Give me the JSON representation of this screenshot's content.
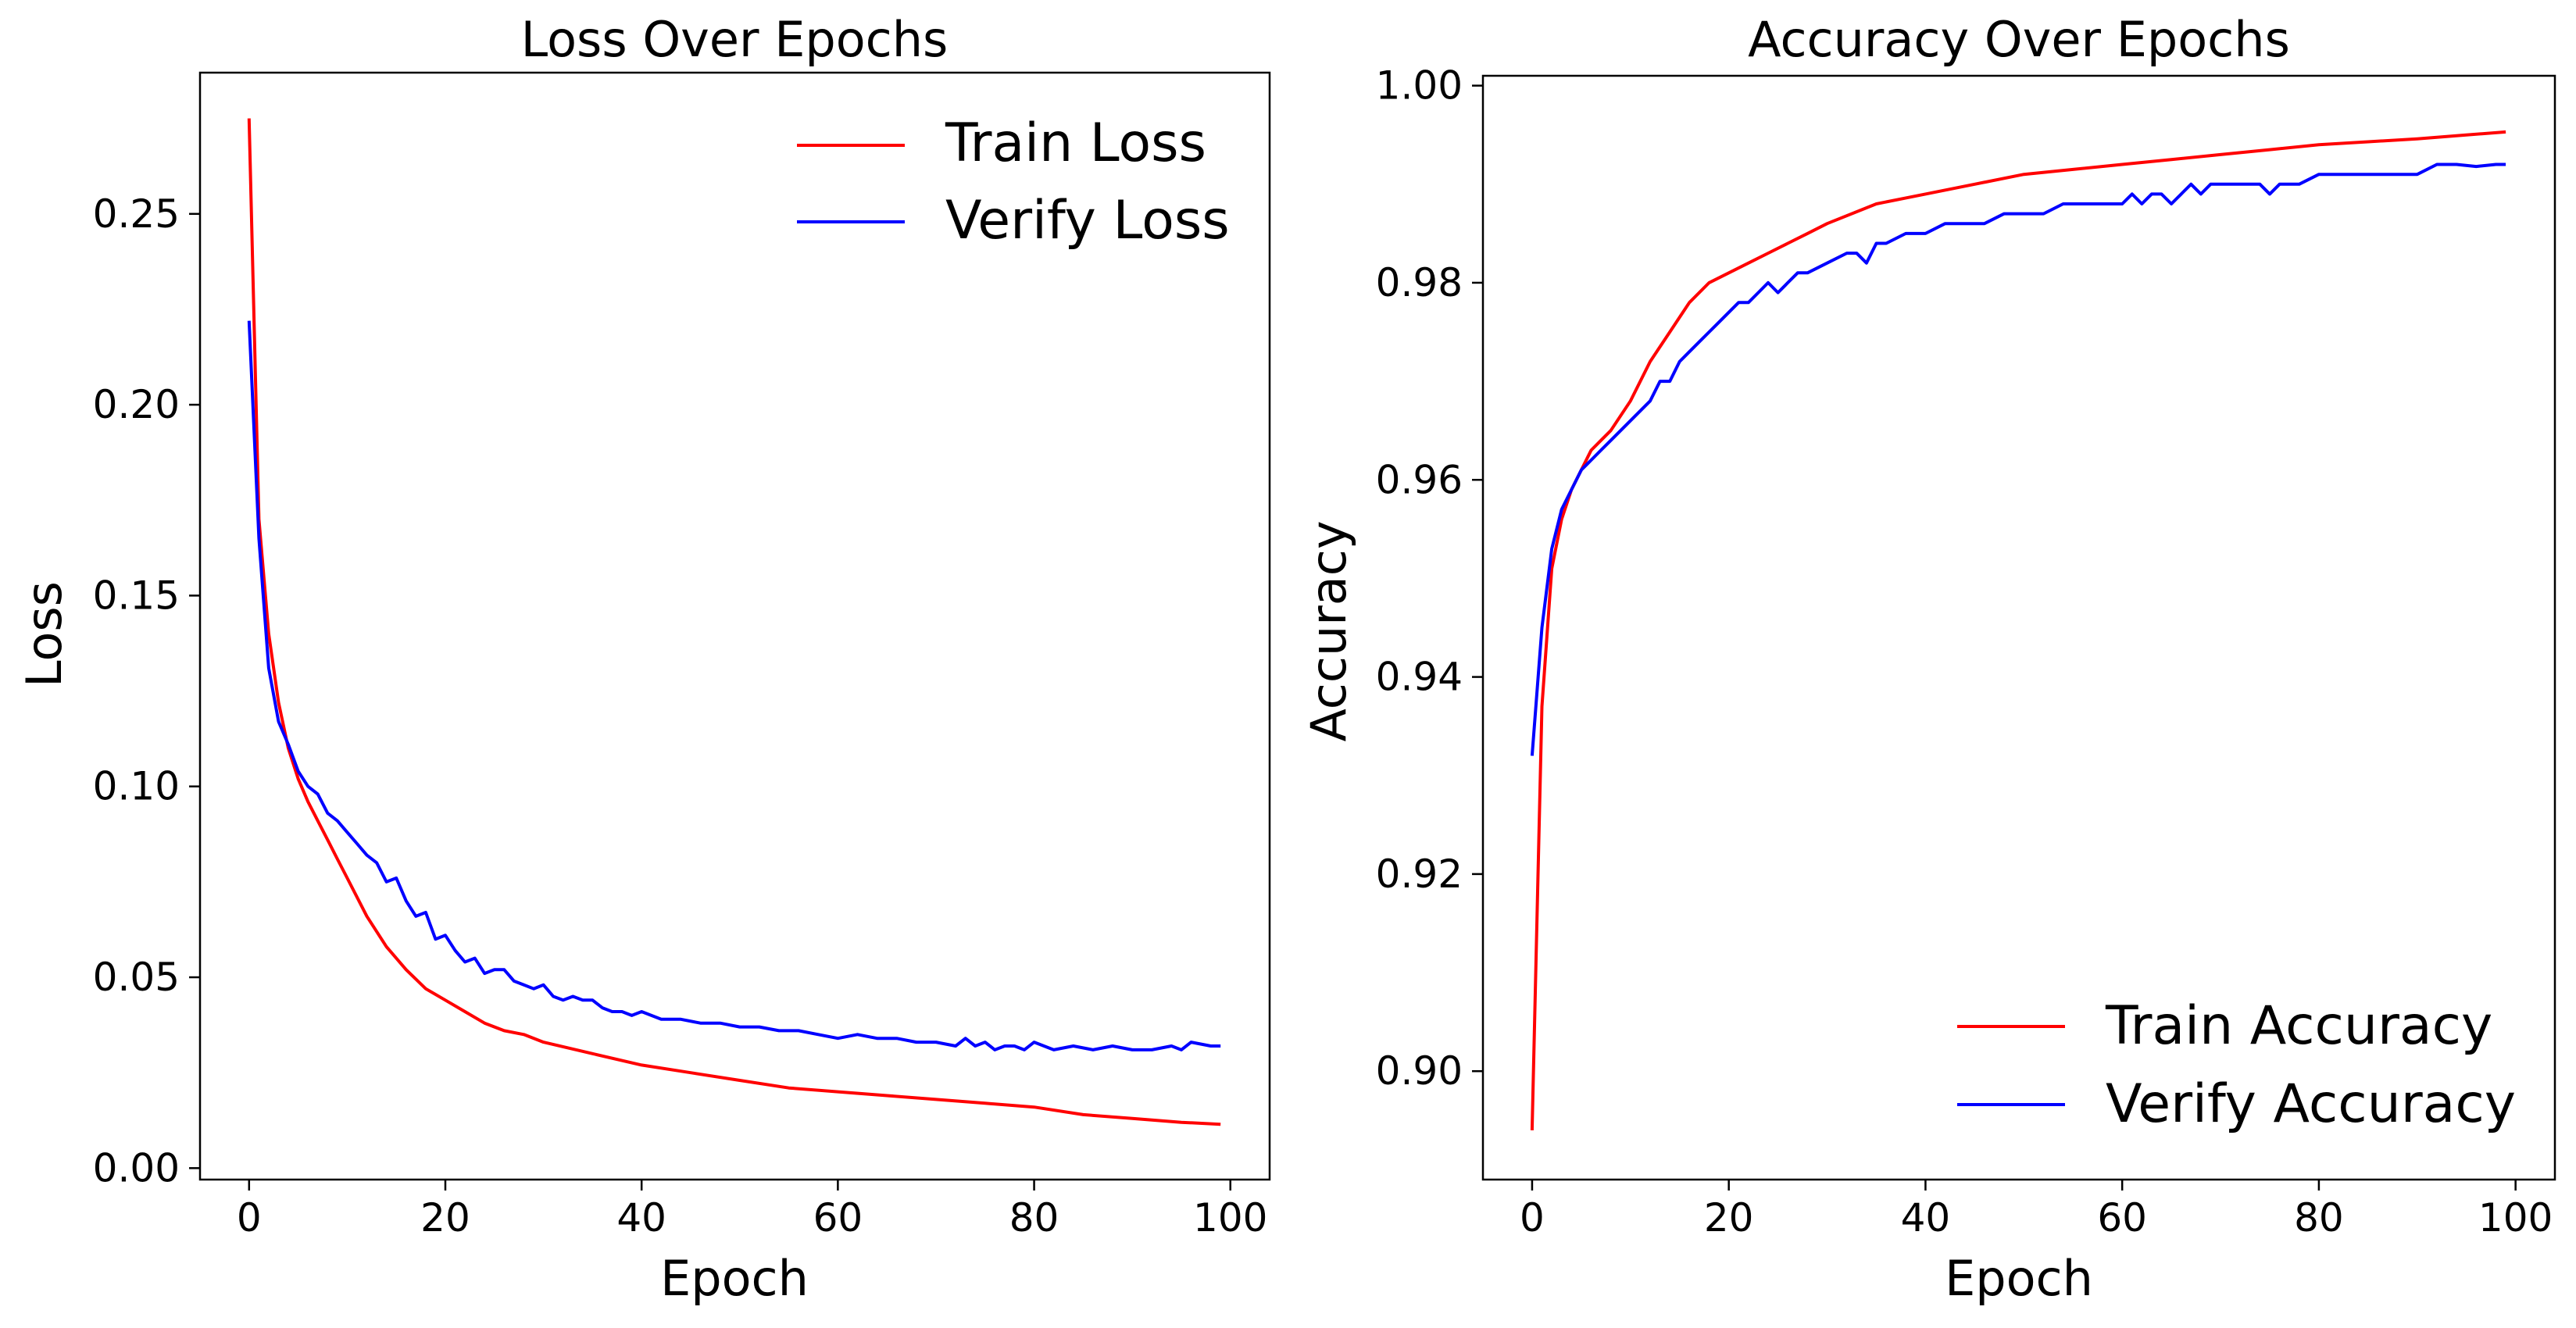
{
  "chart_data": [
    {
      "type": "line",
      "title": "Loss Over Epochs",
      "xlabel": "Epoch",
      "ylabel": "Loss",
      "xlim": [
        -5,
        104
      ],
      "ylim": [
        -0.003,
        0.287
      ],
      "xticks": [
        0,
        20,
        40,
        60,
        80,
        100
      ],
      "yticks": [
        0.0,
        0.05,
        0.1,
        0.15,
        0.2,
        0.25
      ],
      "ytick_labels": [
        "0.00",
        "0.05",
        "0.10",
        "0.15",
        "0.20",
        "0.25"
      ],
      "grid": false,
      "legend_position": "top-right",
      "series": [
        {
          "name": "Train Loss",
          "color": "#ff0000",
          "x": [
            0,
            1,
            2,
            3,
            4,
            5,
            6,
            7,
            8,
            9,
            10,
            12,
            14,
            16,
            18,
            20,
            22,
            24,
            26,
            28,
            30,
            35,
            40,
            45,
            50,
            55,
            60,
            65,
            70,
            75,
            80,
            85,
            90,
            95,
            99
          ],
          "y": [
            0.275,
            0.17,
            0.14,
            0.122,
            0.11,
            0.102,
            0.096,
            0.091,
            0.086,
            0.081,
            0.076,
            0.066,
            0.058,
            0.052,
            0.047,
            0.044,
            0.041,
            0.038,
            0.036,
            0.035,
            0.033,
            0.03,
            0.027,
            0.025,
            0.023,
            0.021,
            0.02,
            0.019,
            0.018,
            0.017,
            0.016,
            0.014,
            0.013,
            0.012,
            0.0115
          ]
        },
        {
          "name": "Verify Loss",
          "color": "#0000ff",
          "x": [
            0,
            1,
            2,
            3,
            4,
            5,
            6,
            7,
            8,
            9,
            10,
            11,
            12,
            13,
            14,
            15,
            16,
            17,
            18,
            19,
            20,
            21,
            22,
            23,
            24,
            25,
            26,
            27,
            28,
            29,
            30,
            31,
            32,
            33,
            34,
            35,
            36,
            37,
            38,
            39,
            40,
            42,
            44,
            46,
            48,
            50,
            52,
            54,
            56,
            58,
            60,
            62,
            64,
            66,
            68,
            70,
            72,
            73,
            74,
            75,
            76,
            77,
            78,
            79,
            80,
            82,
            84,
            86,
            88,
            90,
            92,
            94,
            95,
            96,
            98,
            99
          ],
          "y": [
            0.222,
            0.165,
            0.131,
            0.117,
            0.111,
            0.104,
            0.1,
            0.098,
            0.093,
            0.091,
            0.088,
            0.085,
            0.082,
            0.08,
            0.075,
            0.076,
            0.07,
            0.066,
            0.067,
            0.06,
            0.061,
            0.057,
            0.054,
            0.055,
            0.051,
            0.052,
            0.052,
            0.049,
            0.048,
            0.047,
            0.048,
            0.045,
            0.044,
            0.045,
            0.044,
            0.044,
            0.042,
            0.041,
            0.041,
            0.04,
            0.041,
            0.039,
            0.039,
            0.038,
            0.038,
            0.037,
            0.037,
            0.036,
            0.036,
            0.035,
            0.034,
            0.035,
            0.034,
            0.034,
            0.033,
            0.033,
            0.032,
            0.034,
            0.032,
            0.033,
            0.031,
            0.032,
            0.032,
            0.031,
            0.033,
            0.031,
            0.032,
            0.031,
            0.032,
            0.031,
            0.031,
            0.032,
            0.031,
            0.033,
            0.032,
            0.032
          ]
        }
      ]
    },
    {
      "type": "line",
      "title": "Accuracy Over Epochs",
      "xlabel": "Epoch",
      "ylabel": "Accuracy",
      "xlim": [
        -5,
        104
      ],
      "ylim": [
        0.889,
        1.001
      ],
      "xticks": [
        0,
        20,
        40,
        60,
        80,
        100
      ],
      "yticks": [
        0.9,
        0.92,
        0.94,
        0.96,
        0.98,
        1.0
      ],
      "ytick_labels": [
        "0.90",
        "0.92",
        "0.94",
        "0.96",
        "0.98",
        "1.00"
      ],
      "grid": false,
      "legend_position": "bottom-right",
      "series": [
        {
          "name": "Train Accuracy",
          "color": "#ff0000",
          "x": [
            0,
            1,
            2,
            3,
            4,
            5,
            6,
            7,
            8,
            10,
            12,
            14,
            16,
            18,
            20,
            22,
            24,
            26,
            28,
            30,
            35,
            40,
            45,
            50,
            55,
            60,
            65,
            70,
            75,
            80,
            85,
            90,
            95,
            99
          ],
          "y": [
            0.894,
            0.937,
            0.951,
            0.956,
            0.959,
            0.961,
            0.963,
            0.964,
            0.965,
            0.968,
            0.972,
            0.975,
            0.978,
            0.98,
            0.981,
            0.982,
            0.983,
            0.984,
            0.985,
            0.986,
            0.988,
            0.989,
            0.99,
            0.991,
            0.9915,
            0.992,
            0.9925,
            0.993,
            0.9935,
            0.994,
            0.9943,
            0.9946,
            0.995,
            0.9953
          ]
        },
        {
          "name": "Verify Accuracy",
          "color": "#0000ff",
          "x": [
            0,
            1,
            2,
            3,
            4,
            5,
            6,
            7,
            8,
            10,
            12,
            13,
            14,
            15,
            16,
            17,
            18,
            19,
            20,
            21,
            22,
            23,
            24,
            25,
            26,
            27,
            28,
            30,
            32,
            33,
            34,
            35,
            36,
            38,
            40,
            42,
            44,
            46,
            48,
            50,
            52,
            54,
            56,
            58,
            60,
            61,
            62,
            63,
            64,
            65,
            66,
            67,
            68,
            69,
            70,
            72,
            74,
            75,
            76,
            78,
            80,
            82,
            84,
            86,
            88,
            90,
            92,
            94,
            96,
            98,
            99
          ],
          "y": [
            0.932,
            0.945,
            0.953,
            0.957,
            0.959,
            0.961,
            0.962,
            0.963,
            0.964,
            0.966,
            0.968,
            0.97,
            0.97,
            0.972,
            0.973,
            0.974,
            0.975,
            0.976,
            0.977,
            0.978,
            0.978,
            0.979,
            0.98,
            0.979,
            0.98,
            0.981,
            0.981,
            0.982,
            0.983,
            0.983,
            0.982,
            0.984,
            0.984,
            0.985,
            0.985,
            0.986,
            0.986,
            0.986,
            0.987,
            0.987,
            0.987,
            0.988,
            0.988,
            0.988,
            0.988,
            0.989,
            0.988,
            0.989,
            0.989,
            0.988,
            0.989,
            0.99,
            0.989,
            0.99,
            0.99,
            0.99,
            0.99,
            0.989,
            0.99,
            0.99,
            0.991,
            0.991,
            0.991,
            0.991,
            0.991,
            0.991,
            0.992,
            0.992,
            0.9918,
            0.992,
            0.992
          ]
        }
      ]
    }
  ]
}
